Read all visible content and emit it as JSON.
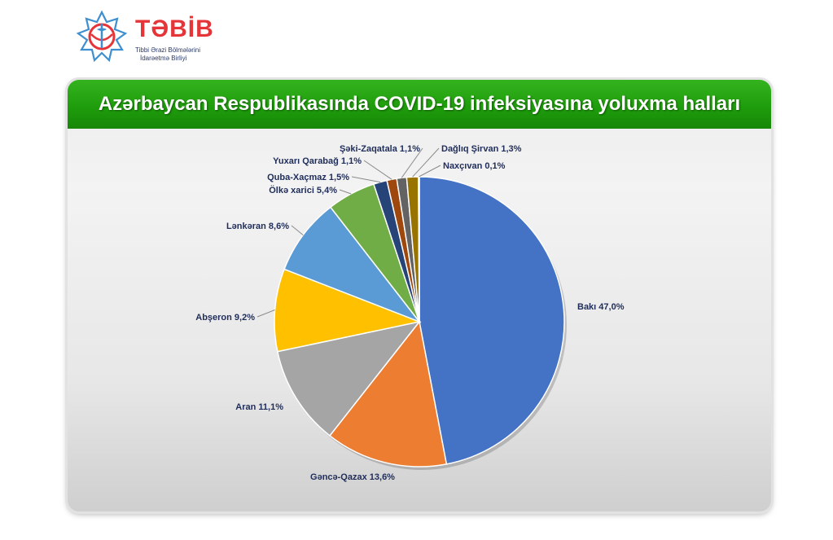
{
  "logo": {
    "name": "TƏBİB",
    "subtitle_line1": "Tibbi Ərazi Bölmələrini",
    "subtitle_line2": "İdarəetmə Birliyi"
  },
  "chart_data": {
    "type": "pie",
    "title": "Azərbaycan Respublikasında COVID-19 infeksiyasına yoluxma halları",
    "slices": [
      {
        "name": "Bakı",
        "label": "Bakı  47,0%",
        "value": 47.0,
        "color": "#4472c4"
      },
      {
        "name": "Gəncə-Qazax",
        "label": "Gəncə-Qazax 13,6%",
        "value": 13.6,
        "color": "#ed7d31"
      },
      {
        "name": "Aran",
        "label": "Aran 11,1%",
        "value": 11.1,
        "color": "#a5a5a5"
      },
      {
        "name": "Abşeron",
        "label": "Abşeron 9,2%",
        "value": 9.2,
        "color": "#ffc000"
      },
      {
        "name": "Lənkəran",
        "label": "Lənkəran 8,6%",
        "value": 8.6,
        "color": "#5b9bd5"
      },
      {
        "name": "Ölkə xarici",
        "label": "Ölkə xarici 5,4%",
        "value": 5.4,
        "color": "#70ad47"
      },
      {
        "name": "Quba-Xaçmaz",
        "label": "Quba-Xaçmaz 1,5%",
        "value": 1.5,
        "color": "#264478"
      },
      {
        "name": "Yuxarı Qarabağ",
        "label": "Yuxarı Qarabağ 1,1%",
        "value": 1.1,
        "color": "#9e480e"
      },
      {
        "name": "Şəki-Zaqatala",
        "label": "Şəki-Zaqatala 1,1%",
        "value": 1.1,
        "color": "#636363"
      },
      {
        "name": "Dağlıq Şirvan",
        "label": "Dağlıq Şirvan 1,3%",
        "value": 1.3,
        "color": "#997300"
      },
      {
        "name": "Naxçıvan",
        "label": "Naxçıvan 0,1%",
        "value": 0.1,
        "color": "#255e91"
      }
    ]
  }
}
